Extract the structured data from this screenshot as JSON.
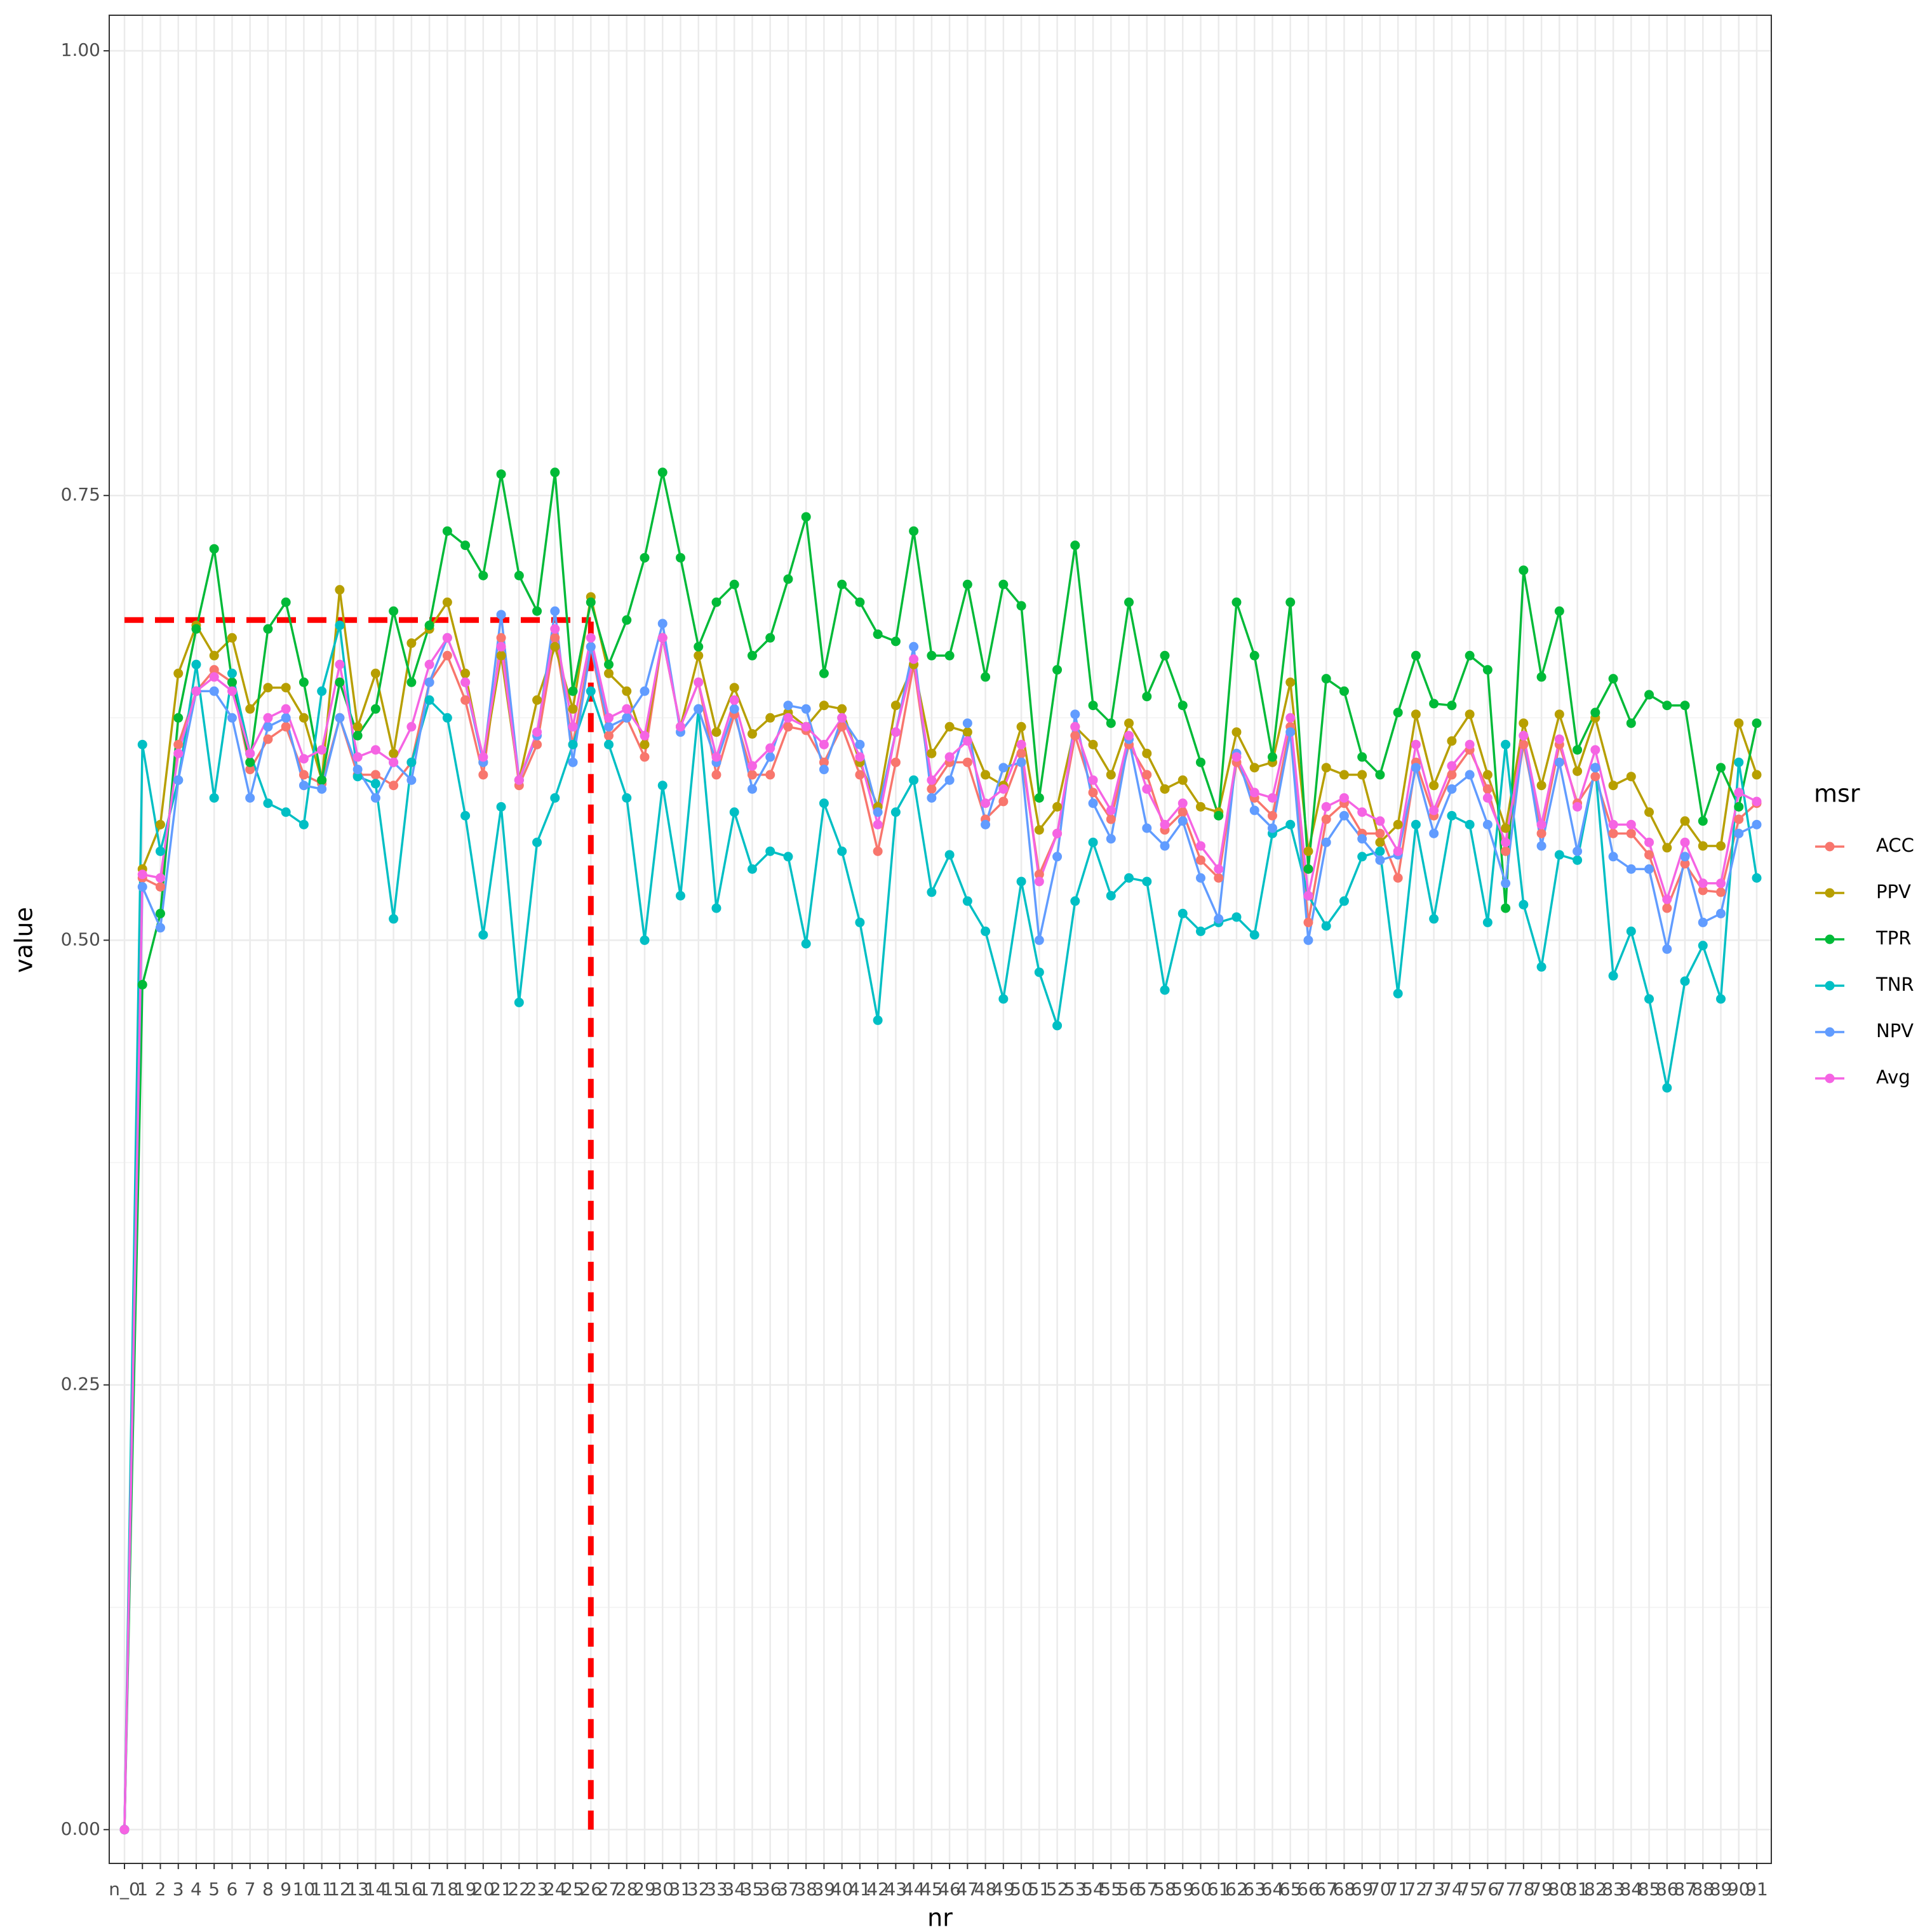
{
  "chart_data": {
    "type": "line",
    "x_label": "nr",
    "y_label": "value",
    "legend_title": "msr",
    "legend_position": "right",
    "grid": true,
    "ylim": [
      -0.019,
      1.02
    ],
    "yticks": [
      {
        "value": 0,
        "label": "0.00"
      },
      {
        "value": 0.25,
        "label": "0.25"
      },
      {
        "value": 0.5,
        "label": "0.50"
      },
      {
        "value": 0.75,
        "label": "0.75"
      },
      {
        "value": 1,
        "label": "1.00"
      }
    ],
    "categories": [
      "n_0",
      "1",
      "2",
      "3",
      "4",
      "5",
      "6",
      "7",
      "8",
      "9",
      "10",
      "11",
      "12",
      "13",
      "14",
      "15",
      "16",
      "17",
      "18",
      "19",
      "20",
      "21",
      "22",
      "23",
      "24",
      "25",
      "26",
      "27",
      "28",
      "29",
      "30",
      "31",
      "32",
      "33",
      "34",
      "35",
      "36",
      "37",
      "38",
      "39",
      "40",
      "41",
      "42",
      "43",
      "44",
      "45",
      "46",
      "47",
      "48",
      "49",
      "50",
      "51",
      "52",
      "53",
      "54",
      "55",
      "56",
      "57",
      "58",
      "59",
      "60",
      "61",
      "62",
      "63",
      "64",
      "65",
      "66",
      "67",
      "68",
      "69",
      "70",
      "71",
      "72",
      "73",
      "74",
      "75",
      "76",
      "77",
      "78",
      "79",
      "80",
      "81",
      "82",
      "83",
      "84",
      "85",
      "86",
      "87",
      "88",
      "89",
      "90",
      "91"
    ],
    "reference_lines": {
      "color": "#ff0000",
      "y": 0.68,
      "x": "26"
    },
    "series": [
      {
        "name": "ACC",
        "color": "#F8766D",
        "values": [
          0,
          0.535,
          0.53,
          0.61,
          0.64,
          0.652,
          0.645,
          0.596,
          0.613,
          0.62,
          0.593,
          0.588,
          0.625,
          0.593,
          0.593,
          0.587,
          0.6,
          0.645,
          0.66,
          0.635,
          0.593,
          0.67,
          0.587,
          0.61,
          0.67,
          0.61,
          0.665,
          0.615,
          0.625,
          0.603,
          0.67,
          0.62,
          0.645,
          0.593,
          0.627,
          0.593,
          0.593,
          0.62,
          0.618,
          0.6,
          0.62,
          0.593,
          0.55,
          0.6,
          0.655,
          0.585,
          0.6,
          0.6,
          0.568,
          0.578,
          0.605,
          0.537,
          0.56,
          0.615,
          0.583,
          0.568,
          0.61,
          0.593,
          0.562,
          0.572,
          0.545,
          0.535,
          0.6,
          0.58,
          0.57,
          0.62,
          0.51,
          0.568,
          0.577,
          0.56,
          0.56,
          0.535,
          0.6,
          0.57,
          0.593,
          0.607,
          0.585,
          0.55,
          0.61,
          0.56,
          0.61,
          0.577,
          0.592,
          0.56,
          0.56,
          0.548,
          0.518,
          0.543,
          0.528,
          0.527,
          0.568,
          0.577
        ]
      },
      {
        "name": "PPV",
        "color": "#B79F00",
        "values": [
          0,
          0.54,
          0.565,
          0.65,
          0.677,
          0.66,
          0.67,
          0.63,
          0.642,
          0.642,
          0.625,
          0.59,
          0.697,
          0.62,
          0.65,
          0.605,
          0.667,
          0.675,
          0.69,
          0.65,
          0.6,
          0.66,
          0.59,
          0.635,
          0.665,
          0.63,
          0.693,
          0.65,
          0.64,
          0.61,
          0.67,
          0.62,
          0.66,
          0.617,
          0.642,
          0.616,
          0.625,
          0.628,
          0.62,
          0.632,
          0.63,
          0.6,
          0.575,
          0.632,
          0.655,
          0.605,
          0.62,
          0.617,
          0.593,
          0.587,
          0.62,
          0.562,
          0.575,
          0.62,
          0.61,
          0.593,
          0.622,
          0.605,
          0.585,
          0.59,
          0.575,
          0.572,
          0.617,
          0.597,
          0.6,
          0.645,
          0.55,
          0.597,
          0.593,
          0.593,
          0.555,
          0.565,
          0.627,
          0.587,
          0.612,
          0.627,
          0.593,
          0.563,
          0.622,
          0.587,
          0.627,
          0.595,
          0.625,
          0.587,
          0.592,
          0.572,
          0.552,
          0.567,
          0.553,
          0.553,
          0.622,
          0.593
        ]
      },
      {
        "name": "TPR",
        "color": "#00BA38",
        "values": [
          0,
          0.475,
          0.515,
          0.625,
          0.675,
          0.72,
          0.645,
          0.6,
          0.675,
          0.69,
          0.645,
          0.59,
          0.645,
          0.615,
          0.63,
          0.685,
          0.645,
          0.677,
          0.73,
          0.722,
          0.705,
          0.762,
          0.705,
          0.685,
          0.763,
          0.64,
          0.69,
          0.655,
          0.68,
          0.715,
          0.763,
          0.715,
          0.665,
          0.69,
          0.7,
          0.66,
          0.67,
          0.703,
          0.738,
          0.65,
          0.7,
          0.69,
          0.672,
          0.668,
          0.73,
          0.66,
          0.66,
          0.7,
          0.648,
          0.7,
          0.688,
          0.58,
          0.652,
          0.722,
          0.632,
          0.622,
          0.69,
          0.637,
          0.66,
          0.632,
          0.6,
          0.57,
          0.69,
          0.66,
          0.603,
          0.69,
          0.54,
          0.647,
          0.64,
          0.603,
          0.593,
          0.628,
          0.66,
          0.633,
          0.632,
          0.66,
          0.652,
          0.518,
          0.708,
          0.648,
          0.685,
          0.607,
          0.628,
          0.647,
          0.622,
          0.638,
          0.632,
          0.632,
          0.567,
          0.597,
          0.575,
          0.622
        ]
      },
      {
        "name": "TNR",
        "color": "#00BFC4",
        "values": [
          0,
          0.61,
          0.55,
          0.59,
          0.655,
          0.58,
          0.65,
          0.605,
          0.577,
          0.572,
          0.565,
          0.64,
          0.677,
          0.592,
          0.588,
          0.512,
          0.6,
          0.635,
          0.625,
          0.57,
          0.503,
          0.575,
          0.465,
          0.555,
          0.58,
          0.61,
          0.64,
          0.61,
          0.58,
          0.5,
          0.587,
          0.525,
          0.63,
          0.518,
          0.572,
          0.54,
          0.55,
          0.547,
          0.498,
          0.577,
          0.55,
          0.51,
          0.455,
          0.572,
          0.59,
          0.527,
          0.548,
          0.522,
          0.505,
          0.467,
          0.533,
          0.482,
          0.452,
          0.522,
          0.555,
          0.525,
          0.535,
          0.533,
          0.472,
          0.515,
          0.505,
          0.51,
          0.513,
          0.503,
          0.56,
          0.565,
          0.525,
          0.508,
          0.522,
          0.547,
          0.55,
          0.47,
          0.565,
          0.512,
          0.57,
          0.565,
          0.51,
          0.61,
          0.52,
          0.485,
          0.548,
          0.545,
          0.597,
          0.48,
          0.505,
          0.467,
          0.417,
          0.477,
          0.497,
          0.467,
          0.6,
          0.535
        ]
      },
      {
        "name": "NPV",
        "color": "#619CFF",
        "values": [
          0,
          0.53,
          0.507,
          0.59,
          0.64,
          0.64,
          0.625,
          0.58,
          0.62,
          0.625,
          0.587,
          0.585,
          0.625,
          0.596,
          0.58,
          0.6,
          0.59,
          0.645,
          0.67,
          0.645,
          0.6,
          0.683,
          0.59,
          0.615,
          0.685,
          0.6,
          0.665,
          0.62,
          0.625,
          0.64,
          0.678,
          0.617,
          0.63,
          0.6,
          0.63,
          0.585,
          0.603,
          0.632,
          0.63,
          0.596,
          0.625,
          0.61,
          0.572,
          0.617,
          0.665,
          0.58,
          0.59,
          0.622,
          0.565,
          0.597,
          0.6,
          0.5,
          0.547,
          0.627,
          0.577,
          0.557,
          0.613,
          0.563,
          0.553,
          0.567,
          0.535,
          0.512,
          0.605,
          0.573,
          0.563,
          0.617,
          0.5,
          0.555,
          0.57,
          0.557,
          0.545,
          0.548,
          0.597,
          0.56,
          0.585,
          0.593,
          0.565,
          0.532,
          0.615,
          0.553,
          0.6,
          0.55,
          0.597,
          0.547,
          0.54,
          0.54,
          0.495,
          0.547,
          0.51,
          0.515,
          0.56,
          0.565
        ]
      },
      {
        "name": "Avg",
        "color": "#F564E3",
        "values": [
          0,
          0.537,
          0.535,
          0.605,
          0.64,
          0.648,
          0.64,
          0.605,
          0.625,
          0.63,
          0.602,
          0.607,
          0.655,
          0.603,
          0.607,
          0.6,
          0.62,
          0.655,
          0.67,
          0.645,
          0.603,
          0.665,
          0.59,
          0.617,
          0.675,
          0.62,
          0.67,
          0.625,
          0.63,
          0.615,
          0.67,
          0.62,
          0.645,
          0.603,
          0.635,
          0.598,
          0.608,
          0.625,
          0.62,
          0.61,
          0.625,
          0.603,
          0.565,
          0.617,
          0.658,
          0.59,
          0.603,
          0.612,
          0.577,
          0.585,
          0.61,
          0.533,
          0.56,
          0.62,
          0.59,
          0.573,
          0.615,
          0.585,
          0.565,
          0.577,
          0.553,
          0.54,
          0.603,
          0.583,
          0.58,
          0.625,
          0.525,
          0.575,
          0.58,
          0.572,
          0.567,
          0.55,
          0.61,
          0.573,
          0.598,
          0.61,
          0.58,
          0.555,
          0.615,
          0.565,
          0.613,
          0.575,
          0.607,
          0.565,
          0.565,
          0.555,
          0.523,
          0.555,
          0.532,
          0.532,
          0.583,
          0.578
        ]
      }
    ]
  }
}
